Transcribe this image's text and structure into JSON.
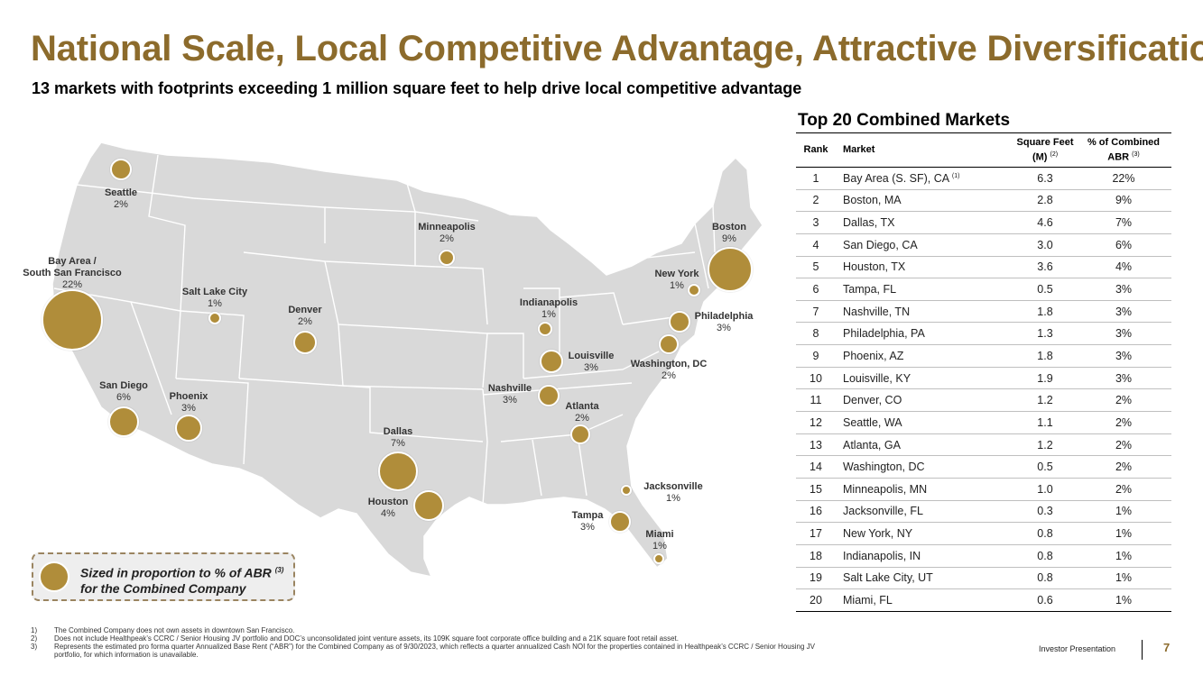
{
  "header": {
    "title": "National Scale, Local Competitive Advantage, Attractive Diversification",
    "subtitle": "13 markets with footprints exceeding 1 million square feet to help drive local competitive advantage"
  },
  "map": {
    "markets": [
      {
        "name": "Seattle",
        "pct": "2%",
        "abr": 2
      },
      {
        "name": "Bay Area / South San Francisco",
        "name_line1": "Bay Area /",
        "name_line2": "South San Francisco",
        "pct": "22%",
        "abr": 22
      },
      {
        "name": "San Diego",
        "pct": "6%",
        "abr": 6
      },
      {
        "name": "Phoenix",
        "pct": "3%",
        "abr": 3
      },
      {
        "name": "Salt Lake City",
        "pct": "1%",
        "abr": 1
      },
      {
        "name": "Denver",
        "pct": "2%",
        "abr": 2
      },
      {
        "name": "Dallas",
        "pct": "7%",
        "abr": 7
      },
      {
        "name": "Houston",
        "pct": "4%",
        "abr": 4
      },
      {
        "name": "Minneapolis",
        "pct": "2%",
        "abr": 2
      },
      {
        "name": "Indianapolis",
        "pct": "1%",
        "abr": 1
      },
      {
        "name": "Louisville",
        "pct": "3%",
        "abr": 3
      },
      {
        "name": "Nashville",
        "pct": "3%",
        "abr": 3
      },
      {
        "name": "Atlanta",
        "pct": "2%",
        "abr": 2
      },
      {
        "name": "Tampa",
        "pct": "3%",
        "abr": 3
      },
      {
        "name": "Miami",
        "pct": "1%",
        "abr": 1
      },
      {
        "name": "Jacksonville",
        "pct": "1%",
        "abr": 1
      },
      {
        "name": "Washington, DC",
        "pct": "2%",
        "abr": 2
      },
      {
        "name": "Philadelphia",
        "pct": "3%",
        "abr": 3
      },
      {
        "name": "New York",
        "pct": "1%",
        "abr": 1
      },
      {
        "name": "Boston",
        "pct": "9%",
        "abr": 9
      }
    ],
    "legend": {
      "line1": "Sized in proportion to % of ABR",
      "sup": "(3)",
      "line2": "for the Combined Company"
    },
    "colors": {
      "bubble": "#b08d3a",
      "land": "#d9d9d9",
      "border": "#ffffff"
    }
  },
  "table": {
    "title": "Top 20 Combined Markets",
    "headers": {
      "rank": "Rank",
      "market": "Market",
      "sqft_line1": "Square Feet",
      "sqft_line2": "(M)",
      "sqft_sup": "(2)",
      "abr_line1": "% of Combined",
      "abr_line2": "ABR",
      "abr_sup": "(3)"
    },
    "rows": [
      {
        "rank": "1",
        "market": "Bay Area (S. SF), CA",
        "sup": "(1)",
        "sqft": "6.3",
        "abr": "22%"
      },
      {
        "rank": "2",
        "market": "Boston, MA",
        "sup": "",
        "sqft": "2.8",
        "abr": "9%"
      },
      {
        "rank": "3",
        "market": "Dallas, TX",
        "sup": "",
        "sqft": "4.6",
        "abr": "7%"
      },
      {
        "rank": "4",
        "market": "San Diego, CA",
        "sup": "",
        "sqft": "3.0",
        "abr": "6%"
      },
      {
        "rank": "5",
        "market": "Houston, TX",
        "sup": "",
        "sqft": "3.6",
        "abr": "4%"
      },
      {
        "rank": "6",
        "market": "Tampa, FL",
        "sup": "",
        "sqft": "0.5",
        "abr": "3%"
      },
      {
        "rank": "7",
        "market": "Nashville, TN",
        "sup": "",
        "sqft": "1.8",
        "abr": "3%"
      },
      {
        "rank": "8",
        "market": "Philadelphia, PA",
        "sup": "",
        "sqft": "1.3",
        "abr": "3%"
      },
      {
        "rank": "9",
        "market": "Phoenix, AZ",
        "sup": "",
        "sqft": "1.8",
        "abr": "3%"
      },
      {
        "rank": "10",
        "market": "Louisville, KY",
        "sup": "",
        "sqft": "1.9",
        "abr": "3%"
      },
      {
        "rank": "11",
        "market": "Denver, CO",
        "sup": "",
        "sqft": "1.2",
        "abr": "2%"
      },
      {
        "rank": "12",
        "market": "Seattle, WA",
        "sup": "",
        "sqft": "1.1",
        "abr": "2%"
      },
      {
        "rank": "13",
        "market": "Atlanta, GA",
        "sup": "",
        "sqft": "1.2",
        "abr": "2%"
      },
      {
        "rank": "14",
        "market": "Washington, DC",
        "sup": "",
        "sqft": "0.5",
        "abr": "2%"
      },
      {
        "rank": "15",
        "market": "Minneapolis, MN",
        "sup": "",
        "sqft": "1.0",
        "abr": "2%"
      },
      {
        "rank": "16",
        "market": "Jacksonville, FL",
        "sup": "",
        "sqft": "0.3",
        "abr": "1%"
      },
      {
        "rank": "17",
        "market": "New York, NY",
        "sup": "",
        "sqft": "0.8",
        "abr": "1%"
      },
      {
        "rank": "18",
        "market": "Indianapolis, IN",
        "sup": "",
        "sqft": "0.8",
        "abr": "1%"
      },
      {
        "rank": "19",
        "market": "Salt Lake City, UT",
        "sup": "",
        "sqft": "0.8",
        "abr": "1%"
      },
      {
        "rank": "20",
        "market": "Miami, FL",
        "sup": "",
        "sqft": "0.6",
        "abr": "1%"
      }
    ]
  },
  "footnotes": [
    {
      "num": "1)",
      "text": "The Combined Company does not own assets in downtown San Francisco."
    },
    {
      "num": "2)",
      "text": "Does not include Healthpeak’s CCRC / Senior Housing JV portfolio and DOC’s unconsolidated joint venture assets, its 109K square foot corporate office building and a 21K square foot retail asset."
    },
    {
      "num": "3)",
      "text": "Represents the estimated pro forma quarter Annualized Base Rent (“ABR”) for the Combined Company as of 9/30/2023, which reflects a quarter annualized Cash NOI for the properties contained in Healthpeak’s CCRC / Senior Housing JV portfolio, for which information is unavailable."
    }
  ],
  "footer": {
    "brand": "Investor Presentation",
    "page": "7"
  }
}
